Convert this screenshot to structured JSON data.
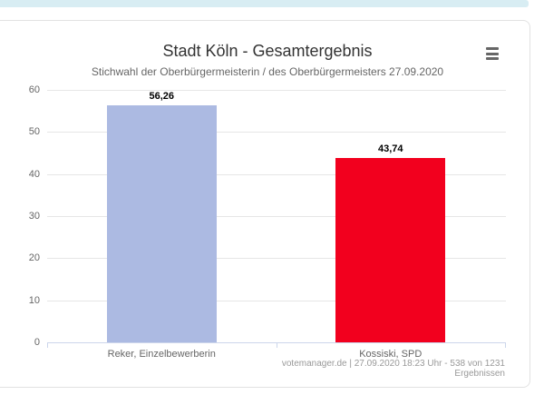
{
  "page": {
    "top_strip_color": "#d8edf3",
    "card_border_color": "#e2e2e2"
  },
  "header": {
    "title": "Stadt Köln - Gesamtergebnis",
    "subtitle": "Stichwahl der Oberbürgermeisterin / des Oberbürgermeisters 27.09.2020",
    "menu_icon": "hamburger-menu-icon"
  },
  "chart_data": {
    "type": "bar",
    "title": "Stadt Köln - Gesamtergebnis",
    "subtitle": "Stichwahl der Oberbürgermeisterin / des Oberbürgermeisters 27.09.2020",
    "categories": [
      "Reker, Einzelbewerberin",
      "Kossiski, SPD"
    ],
    "values": [
      56.26,
      43.74
    ],
    "value_labels": [
      "56,26",
      "43,74"
    ],
    "bar_colors": [
      "#acbae2",
      "#f2001e"
    ],
    "ylim": [
      0,
      60
    ],
    "yticks": [
      0,
      10,
      20,
      30,
      40,
      50,
      60
    ],
    "ytick_labels": [
      "0",
      "10",
      "20",
      "30",
      "40",
      "50",
      "60"
    ],
    "xlabel": "",
    "ylabel": "",
    "grid": true,
    "legend": "none"
  },
  "footer": {
    "credits": "votemanager.de | 27.09.2020 18:23 Uhr - 538 von 1231 Ergebnissen"
  }
}
